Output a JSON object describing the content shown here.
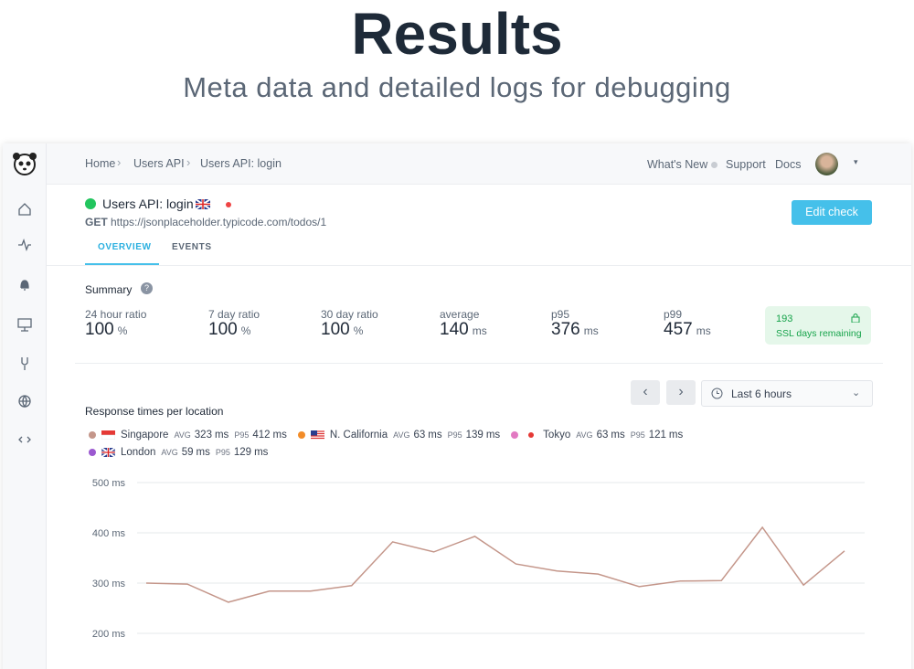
{
  "header": {
    "title": "Results",
    "subtitle": "Meta data and detailed logs for debugging"
  },
  "breadcrumb": [
    "Home",
    "Users API",
    "Users API: login"
  ],
  "nav": [
    "What's New",
    "Support",
    "Docs"
  ],
  "check": {
    "name": "Users API: login",
    "method": "GET",
    "url": "https://jsonplaceholder.typicode.com/todos/1",
    "button": "Edit check"
  },
  "tabs": [
    "OVERVIEW",
    "EVENTS"
  ],
  "summary": {
    "title": "Summary",
    "metrics": [
      {
        "label": "24 hour ratio",
        "value": 100,
        "unit": "%"
      },
      {
        "label": "7 day ratio",
        "value": 100,
        "unit": "%"
      },
      {
        "label": "30 day ratio",
        "value": 100,
        "unit": "%"
      },
      {
        "label": "average",
        "value": 140,
        "unit": "ms"
      },
      {
        "label": "p95",
        "value": 376,
        "unit": "ms"
      },
      {
        "label": "p99",
        "value": 457,
        "unit": "ms"
      }
    ],
    "ssl": {
      "value": 193,
      "label": "SSL days remaining"
    }
  },
  "controls": {
    "range": "Last 6 hours"
  },
  "chart_data": {
    "type": "line",
    "title": "Response times per location",
    "unit": "ms",
    "stat_labels": {
      "avg": "AVG",
      "p95": "P95"
    },
    "categories": [
      null,
      null,
      null,
      null,
      null,
      null,
      null,
      null,
      null,
      null,
      null,
      null,
      null,
      null,
      null,
      null,
      null,
      null
    ],
    "series": [
      {
        "name": "Singapore",
        "color": "#c4968a",
        "avg": 323,
        "p95": 412,
        "values": [
          300,
          298,
          262,
          284,
          284,
          295,
          382,
          362,
          393,
          338,
          324,
          318,
          293,
          304,
          305,
          411,
          296,
          364
        ]
      },
      {
        "name": "N. California",
        "color": "#f28c28",
        "avg": 63,
        "p95": 139
      },
      {
        "name": "Tokyo",
        "color": "#e27ac2",
        "avg": 63,
        "p95": 121
      },
      {
        "name": "London",
        "color": "#9b59d0",
        "avg": 59,
        "p95": 129
      }
    ],
    "ylim": [
      200,
      500
    ],
    "yticks": [
      {
        "value": 500,
        "label": "500 ms"
      },
      {
        "value": 400,
        "label": "400 ms"
      },
      {
        "value": 300,
        "label": "300 ms"
      },
      {
        "value": 200,
        "label": "200 ms"
      }
    ],
    "grid": true
  }
}
